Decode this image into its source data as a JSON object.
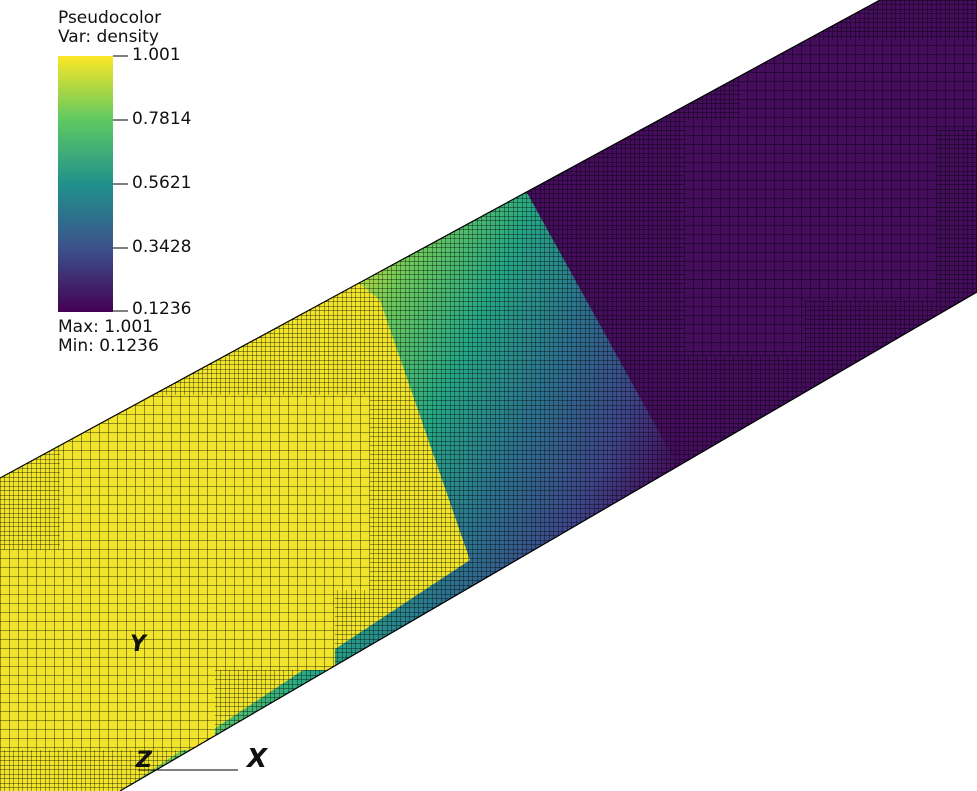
{
  "legend": {
    "plot_type": "Pseudocolor",
    "variable": "Var: density",
    "ticks": [
      "1.001",
      "0.7814",
      "0.5621",
      "0.3428",
      "0.1236"
    ],
    "max_label": "Max:  1.001",
    "min_label": "Min:  0.1236",
    "gradient_stops": [
      "#fde725",
      "#5ec962",
      "#21918c",
      "#3b528b",
      "#440154"
    ]
  },
  "axes": {
    "x": "X",
    "y": "Y",
    "z": "Z"
  },
  "field": {
    "variable": "density",
    "max": 1.001,
    "min": 0.1236,
    "high_color": "#f2e527",
    "low_color": "#440e5c",
    "grid_color": "#000000"
  }
}
